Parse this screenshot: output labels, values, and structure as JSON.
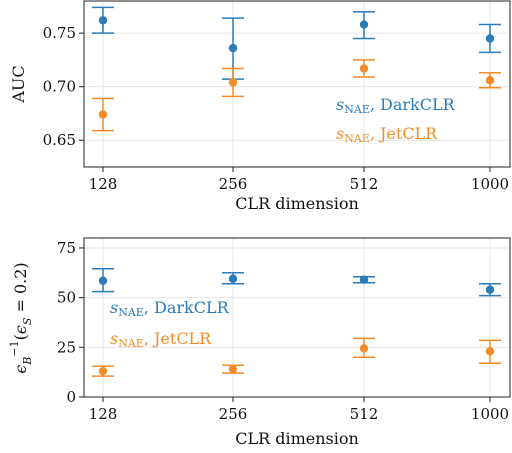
{
  "chart_data": [
    {
      "type": "scatter",
      "xlabel": "CLR dimension",
      "ylabel": "AUC",
      "categories": [
        "128",
        "256",
        "512",
        "1000"
      ],
      "ylim": [
        0.625,
        0.78
      ],
      "yticks": [
        0.65,
        0.7,
        0.75
      ],
      "ytick_labels": [
        "0.65",
        "0.70",
        "0.75"
      ],
      "grid": true,
      "legend_placement": "bottom-right",
      "series": [
        {
          "name": "s_NAE, DarkCLR",
          "color": "#2b7bb9",
          "values": [
            0.762,
            0.736,
            0.758,
            0.745
          ],
          "err_low": [
            0.75,
            0.707,
            0.745,
            0.732
          ],
          "err_high": [
            0.774,
            0.764,
            0.77,
            0.758
          ]
        },
        {
          "name": "s_NAE, JetCLR",
          "color": "#f28c28",
          "values": [
            0.674,
            0.704,
            0.717,
            0.706
          ],
          "err_low": [
            0.659,
            0.691,
            0.709,
            0.699
          ],
          "err_high": [
            0.689,
            0.717,
            0.725,
            0.713
          ]
        }
      ]
    },
    {
      "type": "scatter",
      "xlabel": "CLR dimension",
      "ylabel": "ε_B^{-1}(ε_S = 0.2)",
      "categories": [
        "128",
        "256",
        "512",
        "1000"
      ],
      "ylim": [
        0,
        80
      ],
      "yticks": [
        0,
        25,
        50,
        75
      ],
      "ytick_labels": [
        "0",
        "25",
        "50",
        "75"
      ],
      "grid": true,
      "legend_placement": "center-left",
      "series": [
        {
          "name": "s_NAE, DarkCLR",
          "color": "#2b7bb9",
          "values": [
            58.5,
            59.5,
            59.0,
            54.0
          ],
          "err_low": [
            53.0,
            57.0,
            57.5,
            51.0
          ],
          "err_high": [
            64.5,
            62.5,
            60.5,
            57.0
          ]
        },
        {
          "name": "s_NAE, JetCLR",
          "color": "#f28c28",
          "values": [
            13.0,
            14.0,
            24.5,
            23.0
          ],
          "err_low": [
            10.5,
            12.0,
            20.0,
            17.0
          ],
          "err_high": [
            15.5,
            16.0,
            29.5,
            28.5
          ]
        }
      ]
    }
  ],
  "legend_text": {
    "s": "s",
    "sub": "NAE",
    "dark": ", DarkCLR",
    "jet": ", JetCLR"
  }
}
